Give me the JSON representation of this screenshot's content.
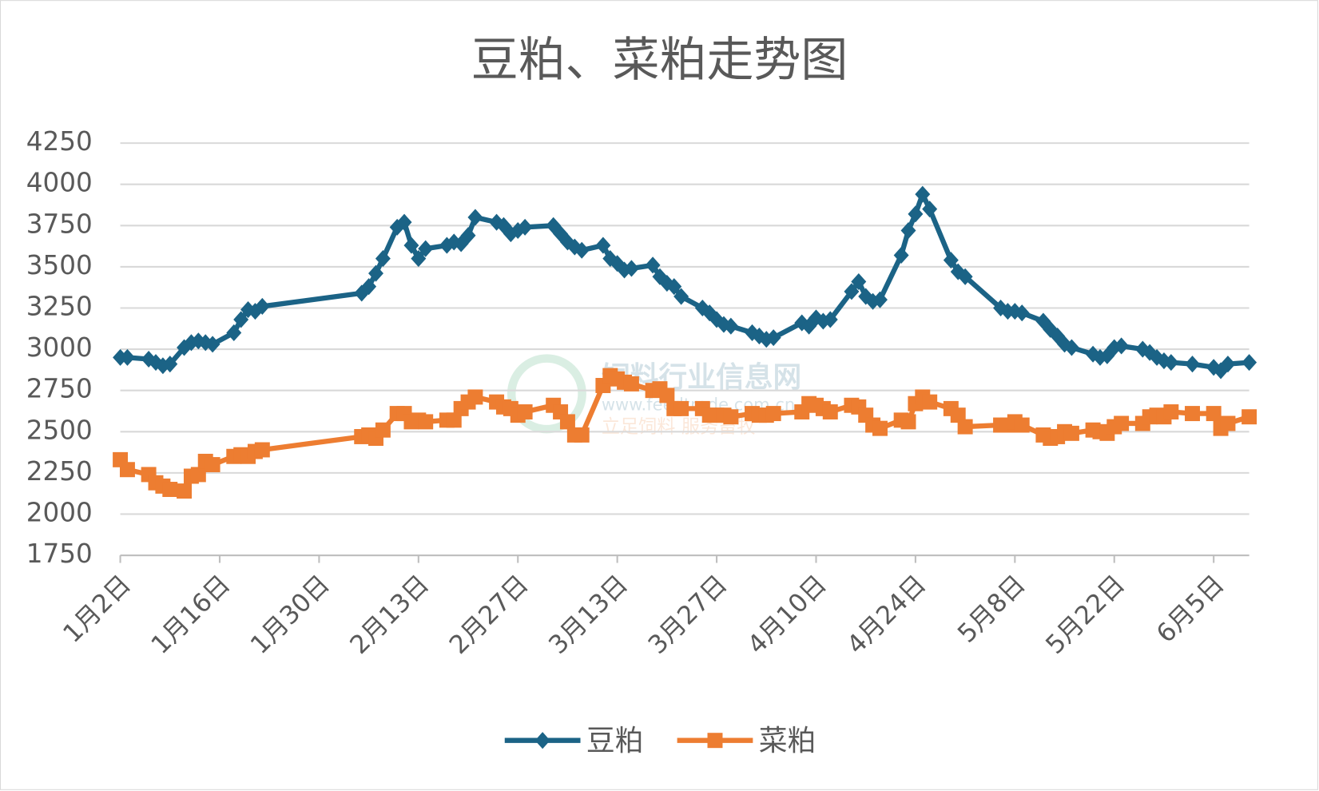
{
  "chart_data": {
    "type": "line",
    "title": "豆粕、菜粕走势图",
    "x": [
      "1月2日",
      "1月3日",
      "1月6日",
      "1月7日",
      "1月8日",
      "1月9日",
      "1月11日",
      "1月12日",
      "1月13日",
      "1月14日",
      "1月15日",
      "1月18日",
      "1月19日",
      "1月20日",
      "1月21日",
      "1月22日",
      "2月5日",
      "2月6日",
      "2月7日",
      "2月8日",
      "2月10日",
      "2月11日",
      "2月12日",
      "2月13日",
      "2月14日",
      "2月17日",
      "2月18日",
      "2月19日",
      "2月20日",
      "2月21日",
      "2月24日",
      "2月25日",
      "2月26日",
      "2月27日",
      "2月28日",
      "3月4日",
      "3月5日",
      "3月6日",
      "3月7日",
      "3月8日",
      "3月11日",
      "3月12日",
      "3月13日",
      "3月14日",
      "3月15日",
      "3月18日",
      "3月19日",
      "3月20日",
      "3月21日",
      "3月22日",
      "3月25日",
      "3月26日",
      "3月27日",
      "3月28日",
      "3月29日",
      "4月1日",
      "4月2日",
      "4月3日",
      "4月4日",
      "4月8日",
      "4月9日",
      "4月10日",
      "4月11日",
      "4月12日",
      "4月15日",
      "4月16日",
      "4月17日",
      "4月18日",
      "4月19日",
      "4月22日",
      "4月23日",
      "4月24日",
      "4月25日",
      "4月26日",
      "4月29日",
      "4月30日",
      "5月1日",
      "5月6日",
      "5月7日",
      "5月8日",
      "5月9日",
      "5月12日",
      "5月13日",
      "5月14日",
      "5月15日",
      "5月16日",
      "5月19日",
      "5月20日",
      "5月21日",
      "5月22日",
      "5月23日",
      "5月26日",
      "5月27日",
      "5月28日",
      "5月29日",
      "5月30日",
      "6月2日",
      "6月5日",
      "6月6日",
      "6月7日",
      "6月10日"
    ],
    "series": [
      {
        "name": "豆粕",
        "color": "#1b6386",
        "marker": "diamond",
        "values": [
          2950,
          2950,
          2940,
          2920,
          2900,
          2910,
          3010,
          3040,
          3050,
          3040,
          3030,
          3100,
          3180,
          3240,
          3230,
          3260,
          3340,
          3380,
          3460,
          3550,
          3740,
          3770,
          3630,
          3550,
          3610,
          3630,
          3650,
          3640,
          3690,
          3800,
          3770,
          3750,
          3700,
          3720,
          3740,
          3750,
          3700,
          3650,
          3620,
          3600,
          3630,
          3550,
          3520,
          3480,
          3490,
          3510,
          3440,
          3400,
          3380,
          3320,
          3250,
          3220,
          3180,
          3150,
          3140,
          3100,
          3080,
          3060,
          3070,
          3160,
          3140,
          3190,
          3170,
          3180,
          3350,
          3410,
          3320,
          3290,
          3300,
          3570,
          3720,
          3820,
          3940,
          3850,
          3540,
          3470,
          3440,
          3250,
          3230,
          3230,
          3220,
          3170,
          3120,
          3080,
          3030,
          3010,
          2970,
          2950,
          2960,
          3010,
          3020,
          3000,
          2980,
          2950,
          2930,
          2920,
          2910,
          2890,
          2870,
          2910,
          2920
        ]
      },
      {
        "name": "菜粕",
        "color": "#ed7d31",
        "marker": "square",
        "values": [
          2330,
          2270,
          2240,
          2190,
          2170,
          2150,
          2140,
          2230,
          2240,
          2320,
          2300,
          2350,
          2360,
          2350,
          2380,
          2390,
          2470,
          2480,
          2460,
          2510,
          2610,
          2610,
          2560,
          2570,
          2560,
          2570,
          2570,
          2640,
          2680,
          2710,
          2680,
          2650,
          2640,
          2600,
          2620,
          2660,
          2620,
          2560,
          2480,
          2480,
          2780,
          2840,
          2820,
          2800,
          2790,
          2750,
          2760,
          2720,
          2640,
          2640,
          2640,
          2600,
          2600,
          2600,
          2590,
          2610,
          2600,
          2600,
          2610,
          2620,
          2670,
          2660,
          2640,
          2620,
          2660,
          2650,
          2600,
          2540,
          2520,
          2570,
          2560,
          2670,
          2710,
          2680,
          2640,
          2600,
          2530,
          2540,
          2540,
          2560,
          2540,
          2480,
          2460,
          2470,
          2500,
          2490,
          2510,
          2500,
          2490,
          2530,
          2550,
          2550,
          2590,
          2600,
          2590,
          2620,
          2610,
          2610,
          2520,
          2550,
          2590
        ]
      }
    ],
    "xlim": [
      "1月2日",
      "6月10日"
    ],
    "xticks": [
      "1月2日",
      "1月16日",
      "1月30日",
      "2月13日",
      "2月27日",
      "3月13日",
      "3月27日",
      "4月10日",
      "4月24日",
      "5月8日",
      "5月22日",
      "6月5日"
    ],
    "ylim": [
      1750,
      4250
    ],
    "yticks": [
      1750,
      2000,
      2250,
      2500,
      2750,
      3000,
      3250,
      3500,
      3750,
      4000,
      4250
    ],
    "grid": true,
    "legend": "bottom",
    "watermark": [
      "饲料行业信息网",
      "www.feedtrade.com.cn",
      "立足饲料 服务畜牧"
    ]
  }
}
